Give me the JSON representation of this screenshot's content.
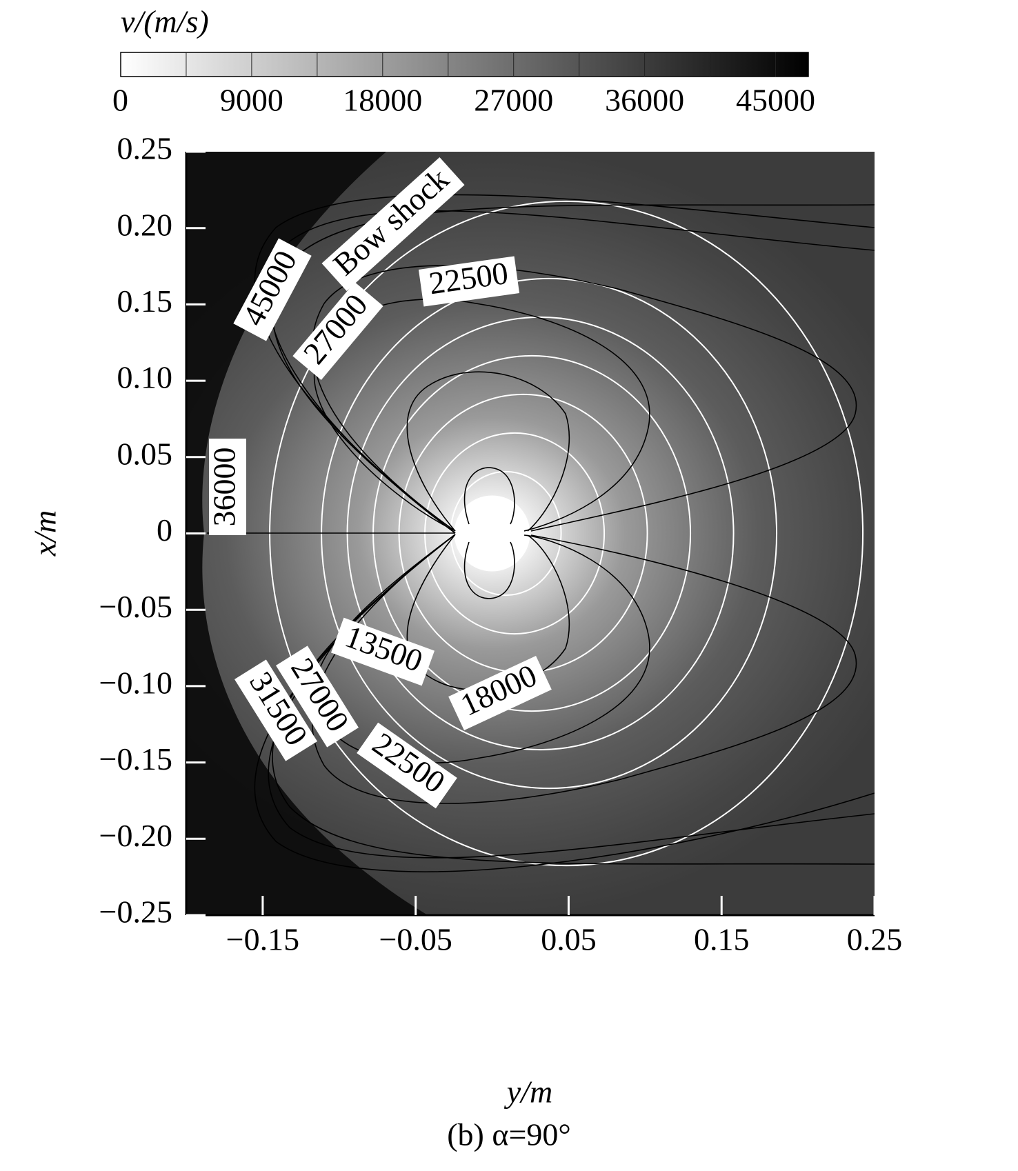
{
  "chart_data": {
    "type": "contour",
    "colorbar_title": "v/(m/s)",
    "colorbar_lim": [
      0,
      47250
    ],
    "colorbar_ticks": [
      0,
      9000,
      18000,
      27000,
      36000,
      45000
    ],
    "colorbar_step": 4500,
    "colormap": [
      "#ffffff",
      "#000000"
    ],
    "xlabel": "y/m",
    "ylabel": "x/m",
    "xlim": [
      -0.2,
      0.25
    ],
    "xticks": [
      {
        "value": -0.15,
        "label": "−0.15"
      },
      {
        "value": -0.05,
        "label": "−0.05"
      },
      0.05,
      0.15,
      0.25
    ],
    "ylim": [
      -0.25,
      0.25
    ],
    "yticks": [
      0.25,
      {
        "value": 0.2,
        "label": "0.20"
      },
      0.15,
      {
        "value": 0.1,
        "label": "0.10"
      },
      0.05,
      0,
      {
        "value": -0.05,
        "label": "−0.05"
      },
      {
        "value": -0.1,
        "label": "−0.10"
      },
      {
        "value": -0.15,
        "label": "−0.15"
      },
      {
        "value": -0.2,
        "label": "−0.20"
      },
      {
        "value": -0.25,
        "label": "−0.25"
      }
    ],
    "contour_levels": [
      13500,
      18000,
      22500,
      27000,
      31500,
      36000,
      45000
    ],
    "contour_color": "#ffffff",
    "contour_labels": [
      45000,
      27000,
      22500,
      36000,
      13500,
      18000,
      27000,
      31500,
      22500
    ],
    "annotation": "Bow shock",
    "caption": "(b) α=90°"
  }
}
